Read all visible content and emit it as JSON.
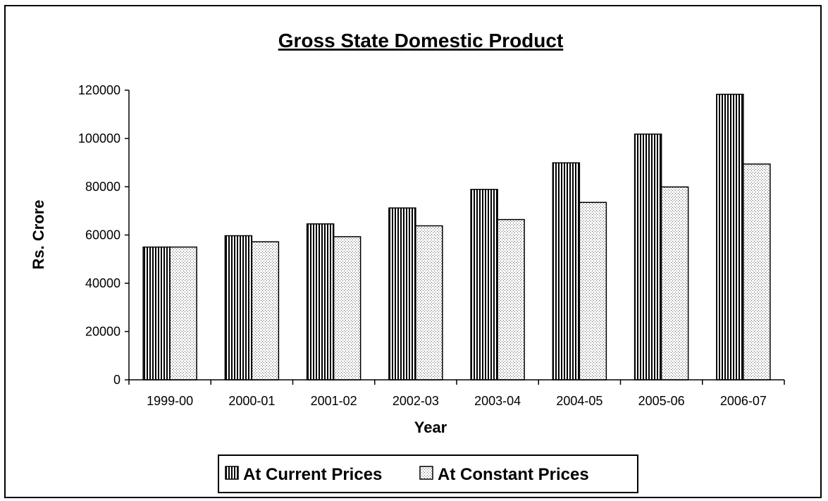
{
  "chart_data": {
    "type": "bar",
    "title": "Gross State Domestic Product",
    "xlabel": "Year",
    "ylabel": "Rs. Crore",
    "categories": [
      "1999-00",
      "2000-01",
      "2001-02",
      "2002-03",
      "2003-04",
      "2004-05",
      "2005-06",
      "2006-07"
    ],
    "series": [
      {
        "name": "At Current Prices",
        "values": [
          55000,
          59700,
          64600,
          71200,
          78900,
          89900,
          101800,
          118300
        ],
        "pattern": "vertical-stripes"
      },
      {
        "name": "At Constant Prices",
        "values": [
          55000,
          57200,
          59300,
          63800,
          66400,
          73500,
          79900,
          89400
        ],
        "pattern": "dots"
      }
    ],
    "ylim": [
      0,
      120000
    ],
    "yticks": [
      "0",
      "20000",
      "40000",
      "60000",
      "80000",
      "100000",
      "120000"
    ],
    "grid": false,
    "legend": "bottom"
  }
}
